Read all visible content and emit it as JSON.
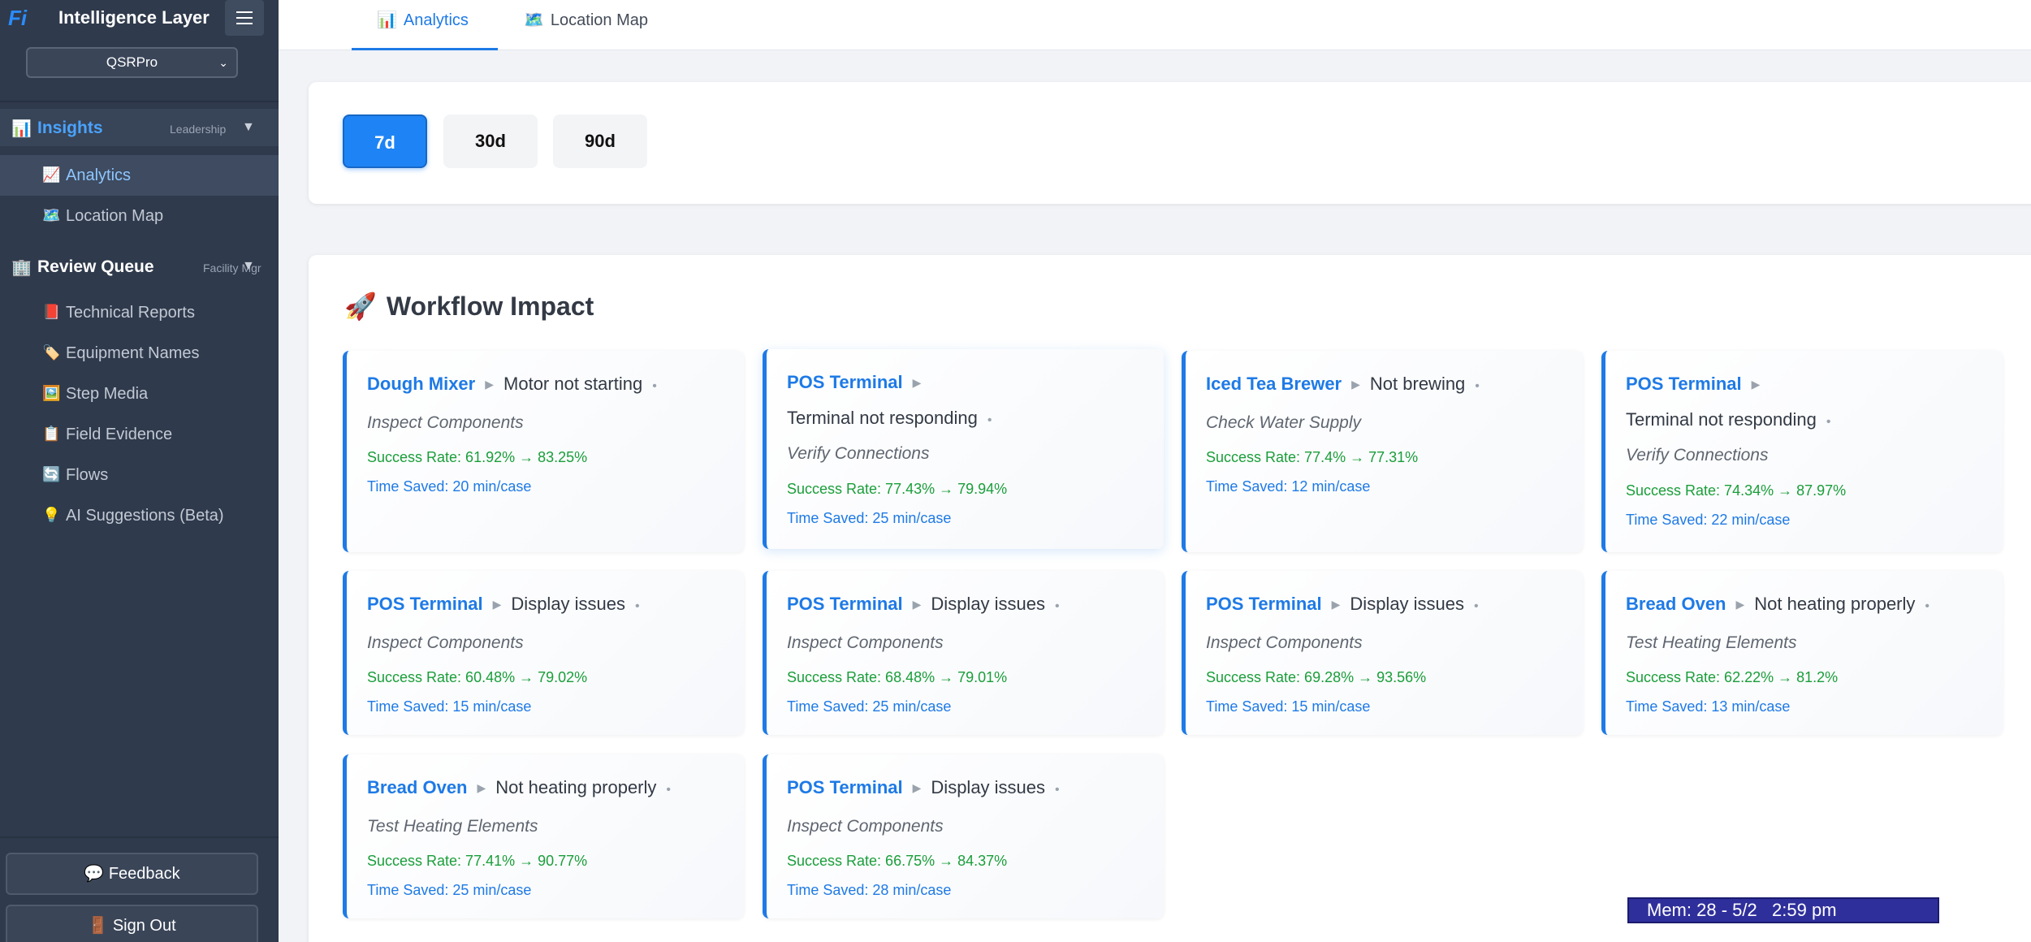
{
  "brand": {
    "logo": "Fi",
    "title": "Intelligence Layer"
  },
  "org_select": {
    "value": "QSRPro"
  },
  "sidebar": {
    "sections": [
      {
        "label": "Insights",
        "role": "Leadership",
        "icon": "📊",
        "items": [
          {
            "label": "Analytics",
            "icon": "📈",
            "active": true
          },
          {
            "label": "Location Map",
            "icon": "🗺️",
            "active": false
          }
        ]
      },
      {
        "label": "Review Queue",
        "role": "Facility Mgr",
        "icon": "🏢",
        "items": [
          {
            "label": "Technical Reports",
            "icon": "📕"
          },
          {
            "label": "Equipment Names",
            "icon": "🏷️"
          },
          {
            "label": "Step Media",
            "icon": "🖼️"
          },
          {
            "label": "Field Evidence",
            "icon": "📋"
          },
          {
            "label": "Flows",
            "icon": "🔄"
          },
          {
            "label": "AI Suggestions (Beta)",
            "icon": "💡"
          }
        ]
      }
    ],
    "feedback_label": "Feedback",
    "feedback_icon": "💬",
    "signout_label": "Sign Out",
    "signout_icon": "🚪"
  },
  "tabs": [
    {
      "label": "Analytics",
      "icon": "📊",
      "active": true
    },
    {
      "label": "Location Map",
      "icon": "🗺️",
      "active": false
    }
  ],
  "range": {
    "options": [
      "7d",
      "30d",
      "90d"
    ],
    "selected": "7d"
  },
  "workflow_impact": {
    "title": "Workflow Impact",
    "icon": "🚀",
    "cards": [
      {
        "equipment": "Dough Mixer",
        "issue": "Motor not starting",
        "step": "Inspect Components",
        "rate": "Success Rate: 61.92% → 83.25%",
        "time": "Time Saved: 20 min/case"
      },
      {
        "equipment": "POS Terminal",
        "issue": "Terminal not responding",
        "step": "Verify Connections",
        "rate": "Success Rate: 77.43% → 79.94%",
        "time": "Time Saved: 25 min/case"
      },
      {
        "equipment": "Iced Tea Brewer",
        "issue": "Not brewing",
        "step": "Check Water Supply",
        "rate": "Success Rate: 77.4% → 77.31%",
        "time": "Time Saved: 12 min/case"
      },
      {
        "equipment": "POS Terminal",
        "issue": "Terminal not responding",
        "step": "Verify Connections",
        "rate": "Success Rate: 74.34% → 87.97%",
        "time": "Time Saved: 22 min/case"
      },
      {
        "equipment": "POS Terminal",
        "issue": "Display issues",
        "step": "Inspect Components",
        "rate": "Success Rate: 60.48% → 79.02%",
        "time": "Time Saved: 15 min/case"
      },
      {
        "equipment": "POS Terminal",
        "issue": "Display issues",
        "step": "Inspect Components",
        "rate": "Success Rate: 68.48% → 79.01%",
        "time": "Time Saved: 25 min/case"
      },
      {
        "equipment": "POS Terminal",
        "issue": "Display issues",
        "step": "Inspect Components",
        "rate": "Success Rate: 69.28% → 93.56%",
        "time": "Time Saved: 15 min/case"
      },
      {
        "equipment": "Bread Oven",
        "issue": "Not heating properly",
        "step": "Test Heating Elements",
        "rate": "Success Rate: 62.22% → 81.2%",
        "time": "Time Saved: 13 min/case"
      },
      {
        "equipment": "Bread Oven",
        "issue": "Not heating properly",
        "step": "Test Heating Elements",
        "rate": "Success Rate: 77.41% → 90.77%",
        "time": "Time Saved: 25 min/case"
      },
      {
        "equipment": "POS Terminal",
        "issue": "Display issues",
        "step": "Inspect Components",
        "rate": "Success Rate: 66.75% → 84.37%",
        "time": "Time Saved: 28 min/case"
      }
    ]
  },
  "status_bar": {
    "text": "Mem: 28 - 5/2   2:59 pm"
  }
}
